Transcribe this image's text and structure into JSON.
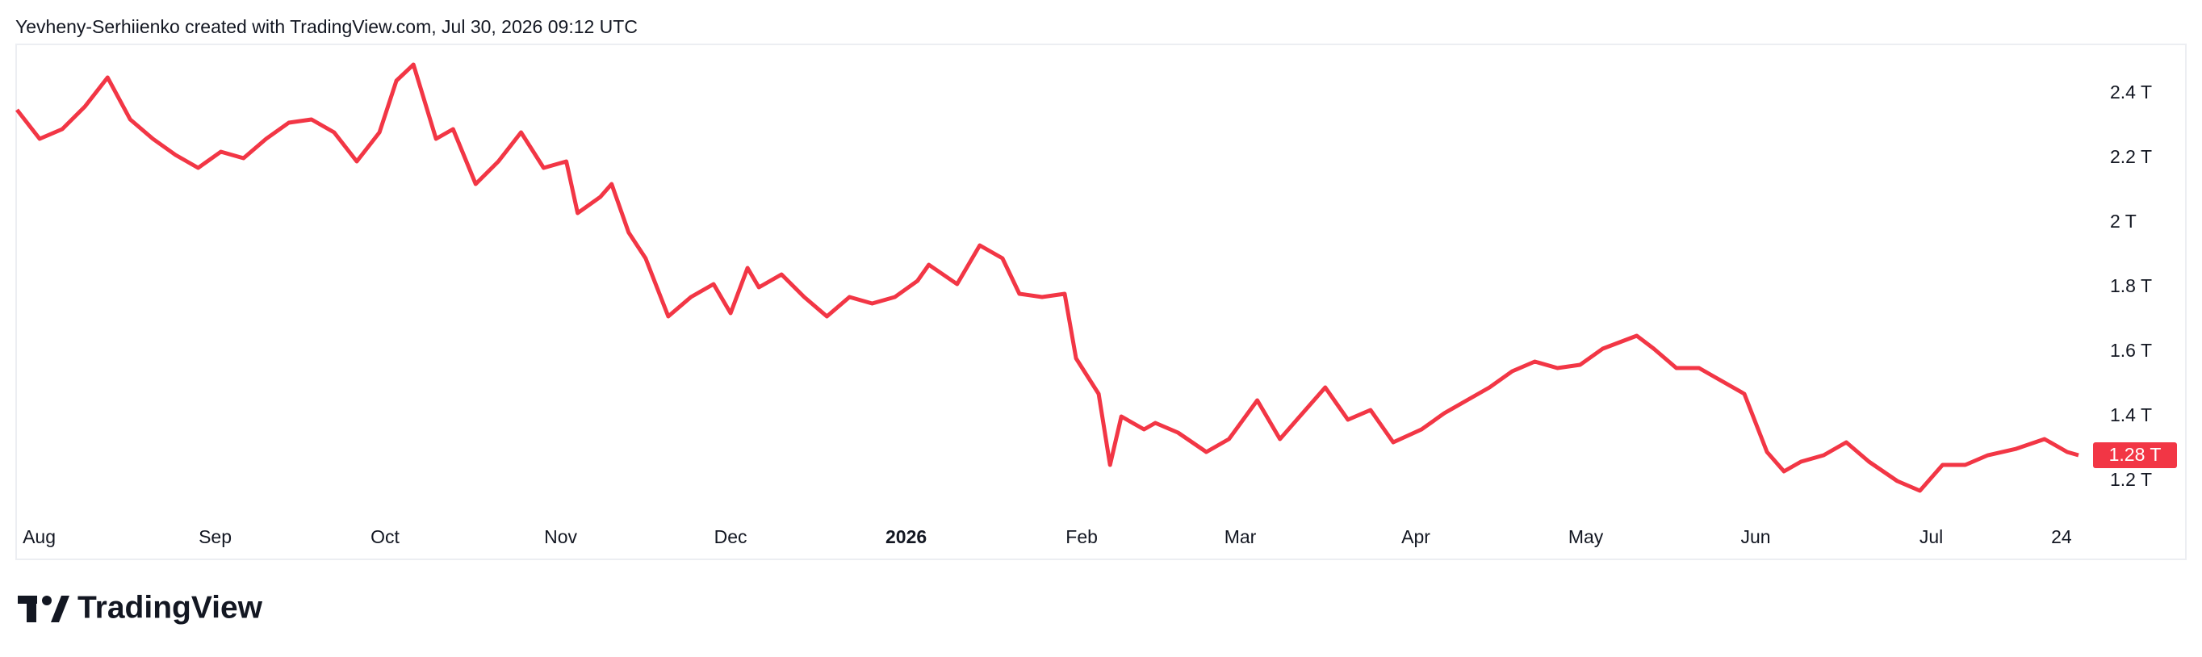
{
  "header": "Yevheny-Serhiienko created with TradingView.com, Jul 30, 2026 09:12 UTC",
  "logo_text": "TradingView",
  "chart_data": {
    "type": "line",
    "series": [
      {
        "color": "#f23645",
        "x": [
          0,
          4,
          8,
          12,
          16,
          20,
          24,
          28,
          32,
          36,
          40,
          44,
          48,
          52,
          56,
          60,
          64,
          67,
          70,
          74,
          77,
          81,
          85,
          89,
          93,
          97,
          99,
          103,
          105,
          108,
          111,
          115,
          119,
          123,
          126,
          129,
          131,
          135,
          139,
          143,
          147,
          151,
          155,
          159,
          161,
          166,
          170,
          174,
          177,
          181,
          185,
          187,
          191,
          193,
          195,
          199,
          201,
          205,
          210,
          214,
          219,
          223,
          226,
          231,
          235,
          239,
          243,
          248,
          252,
          256,
          260,
          264,
          268,
          272,
          276,
          280,
          286,
          289,
          293,
          297,
          300,
          305,
          309,
          312,
          315,
          319,
          323,
          327,
          332,
          336,
          340,
          344,
          348,
          353,
          358,
          362,
          364
        ],
        "values": [
          2.35,
          2.26,
          2.29,
          2.36,
          2.45,
          2.32,
          2.26,
          2.21,
          2.17,
          2.22,
          2.2,
          2.26,
          2.31,
          2.32,
          2.28,
          2.19,
          2.28,
          2.44,
          2.49,
          2.26,
          2.29,
          2.12,
          2.19,
          2.28,
          2.17,
          2.19,
          2.03,
          2.08,
          2.12,
          1.97,
          1.89,
          1.71,
          1.77,
          1.81,
          1.72,
          1.86,
          1.8,
          1.84,
          1.77,
          1.71,
          1.77,
          1.75,
          1.77,
          1.82,
          1.87,
          1.81,
          1.93,
          1.89,
          1.78,
          1.77,
          1.78,
          1.58,
          1.47,
          1.25,
          1.4,
          1.36,
          1.38,
          1.35,
          1.29,
          1.33,
          1.45,
          1.33,
          1.39,
          1.49,
          1.39,
          1.42,
          1.32,
          1.36,
          1.41,
          1.45,
          1.49,
          1.54,
          1.57,
          1.55,
          1.56,
          1.61,
          1.65,
          1.61,
          1.55,
          1.55,
          1.52,
          1.47,
          1.29,
          1.23,
          1.26,
          1.28,
          1.32,
          1.26,
          1.2,
          1.17,
          1.25,
          1.25,
          1.28,
          1.3,
          1.33,
          1.29,
          1.28
        ]
      }
    ],
    "xlim": [
      0,
      364
    ],
    "xticks": [
      {
        "value": 4,
        "label": "Aug"
      },
      {
        "value": 35,
        "label": "Sep"
      },
      {
        "value": 65,
        "label": "Oct"
      },
      {
        "value": 96,
        "label": "Nov"
      },
      {
        "value": 126,
        "label": "Dec"
      },
      {
        "value": 157,
        "label": "2026",
        "bold": true
      },
      {
        "value": 188,
        "label": "Feb"
      },
      {
        "value": 216,
        "label": "Mar"
      },
      {
        "value": 247,
        "label": "Apr"
      },
      {
        "value": 277,
        "label": "May"
      },
      {
        "value": 307,
        "label": "Jun"
      },
      {
        "value": 338,
        "label": "Jul"
      },
      {
        "value": 361,
        "label": "24"
      }
    ],
    "ylim": [
      1.09,
      2.55
    ],
    "yticks": [
      {
        "value": 1.2,
        "label": "1.2 T"
      },
      {
        "value": 1.4,
        "label": "1.4 T"
      },
      {
        "value": 1.6,
        "label": "1.6 T"
      },
      {
        "value": 1.8,
        "label": "1.8 T"
      },
      {
        "value": 2,
        "label": "2 T"
      },
      {
        "value": 2.2,
        "label": "2.2 T"
      },
      {
        "value": 2.4,
        "label": "2.4 T"
      }
    ],
    "last_price": {
      "value": 1.28,
      "label": "1.28 T"
    }
  }
}
